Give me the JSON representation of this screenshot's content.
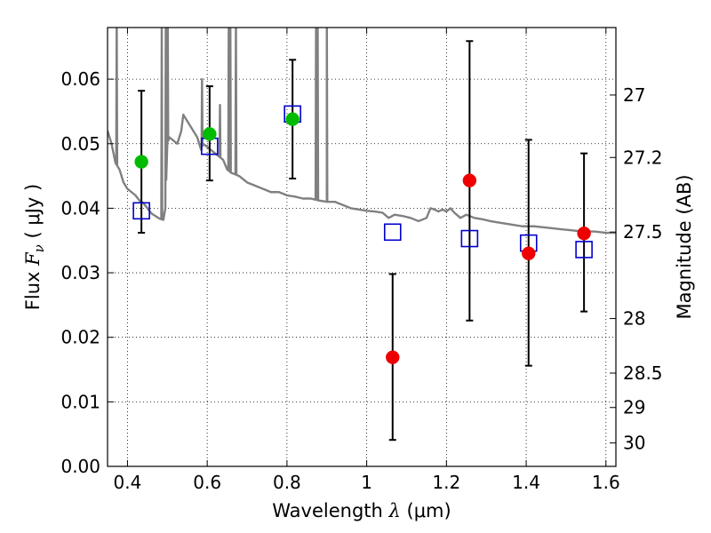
{
  "chart_data": {
    "type": "scatter",
    "xlabel": {
      "pre": "Wavelength  ",
      "sym": "λ",
      "post": " (μm)"
    },
    "ylabel": {
      "pre": "Flux  ",
      "sym": "F",
      "sub": "ν",
      "post": "  ( μJy )"
    },
    "y2label": "Magnitude (AB)",
    "xlim": [
      0.35,
      1.625
    ],
    "ylim": [
      0.0,
      0.068
    ],
    "grid": true,
    "x_ticks": [
      {
        "v": 0.4,
        "label": "0.4"
      },
      {
        "v": 0.6,
        "label": "0.6"
      },
      {
        "v": 0.8,
        "label": "0.8"
      },
      {
        "v": 1.0,
        "label": "1"
      },
      {
        "v": 1.2,
        "label": "1.2"
      },
      {
        "v": 1.4,
        "label": "1.4"
      },
      {
        "v": 1.6,
        "label": "1.6"
      }
    ],
    "y_ticks": [
      {
        "v": 0.0,
        "label": "0.00"
      },
      {
        "v": 0.01,
        "label": "0.01"
      },
      {
        "v": 0.02,
        "label": "0.02"
      },
      {
        "v": 0.03,
        "label": "0.03"
      },
      {
        "v": 0.04,
        "label": "0.04"
      },
      {
        "v": 0.05,
        "label": "0.05"
      },
      {
        "v": 0.06,
        "label": "0.06"
      }
    ],
    "y2_ticks": [
      {
        "mag": 27,
        "label": "27"
      },
      {
        "mag": 27.2,
        "label": "27.2"
      },
      {
        "mag": 27.5,
        "label": "27.5"
      },
      {
        "mag": 28,
        "label": "28"
      },
      {
        "mag": 28.5,
        "label": "28.5"
      },
      {
        "mag": 29,
        "label": "29"
      },
      {
        "mag": 30,
        "label": "30"
      }
    ],
    "colors": {
      "template": "#808080",
      "model": "#0000cc",
      "detection": "#00bb00",
      "upper": "#ee0000",
      "errorbar": "#000000",
      "grid": "#000000"
    },
    "observed": [
      {
        "x": 0.435,
        "y": 0.0472,
        "yerr": [
          0.0362,
          0.0582
        ],
        "group": "detection"
      },
      {
        "x": 0.606,
        "y": 0.0515,
        "yerr": [
          0.0443,
          0.0589
        ],
        "group": "detection"
      },
      {
        "x": 0.814,
        "y": 0.0538,
        "yerr": [
          0.0446,
          0.063
        ],
        "group": "detection"
      },
      {
        "x": 1.065,
        "y": 0.0169,
        "yerr": [
          0.0041,
          0.0298
        ],
        "group": "upper"
      },
      {
        "x": 1.258,
        "y": 0.0443,
        "yerr": [
          0.0226,
          0.0659
        ],
        "group": "upper"
      },
      {
        "x": 1.406,
        "y": 0.033,
        "yerr": [
          0.0156,
          0.0506
        ],
        "group": "upper"
      },
      {
        "x": 1.545,
        "y": 0.0361,
        "yerr": [
          0.024,
          0.0485
        ],
        "group": "upper"
      }
    ],
    "model_flux": [
      {
        "x": 0.435,
        "y": 0.0396
      },
      {
        "x": 0.606,
        "y": 0.0496
      },
      {
        "x": 0.814,
        "y": 0.0546
      },
      {
        "x": 1.065,
        "y": 0.0363
      },
      {
        "x": 1.258,
        "y": 0.0353
      },
      {
        "x": 1.406,
        "y": 0.0346
      },
      {
        "x": 1.545,
        "y": 0.0336
      }
    ],
    "template_spectrum": [
      [
        0.35,
        0.052
      ],
      [
        0.36,
        0.05
      ],
      [
        0.37,
        0.047
      ],
      [
        0.38,
        0.046
      ],
      [
        0.39,
        0.044
      ],
      [
        0.4,
        0.043
      ],
      [
        0.41,
        0.0425
      ],
      [
        0.42,
        0.042
      ],
      [
        0.43,
        0.0412
      ],
      [
        0.44,
        0.0408
      ],
      [
        0.45,
        0.04
      ],
      [
        0.46,
        0.0392
      ],
      [
        0.47,
        0.0388
      ],
      [
        0.48,
        0.0384
      ],
      [
        0.49,
        0.0382
      ],
      [
        0.495,
        0.04
      ],
      [
        0.5,
        0.05
      ],
      [
        0.505,
        0.051
      ],
      [
        0.515,
        0.0505
      ],
      [
        0.525,
        0.05
      ],
      [
        0.535,
        0.052
      ],
      [
        0.54,
        0.0545
      ],
      [
        0.545,
        0.054
      ],
      [
        0.555,
        0.053
      ],
      [
        0.565,
        0.052
      ],
      [
        0.575,
        0.051
      ],
      [
        0.585,
        0.049
      ],
      [
        0.59,
        0.05
      ],
      [
        0.6,
        0.0495
      ],
      [
        0.61,
        0.049
      ],
      [
        0.62,
        0.0485
      ],
      [
        0.63,
        0.048
      ],
      [
        0.64,
        0.0475
      ],
      [
        0.65,
        0.046
      ],
      [
        0.66,
        0.0455
      ],
      [
        0.68,
        0.045
      ],
      [
        0.7,
        0.044
      ],
      [
        0.72,
        0.0435
      ],
      [
        0.74,
        0.043
      ],
      [
        0.76,
        0.0425
      ],
      [
        0.78,
        0.0425
      ],
      [
        0.8,
        0.042
      ],
      [
        0.82,
        0.0418
      ],
      [
        0.84,
        0.0415
      ],
      [
        0.86,
        0.0415
      ],
      [
        0.88,
        0.0412
      ],
      [
        0.9,
        0.041
      ],
      [
        0.92,
        0.041
      ],
      [
        0.94,
        0.0405
      ],
      [
        0.96,
        0.04
      ],
      [
        0.98,
        0.0398
      ],
      [
        1.0,
        0.0396
      ],
      [
        1.02,
        0.0395
      ],
      [
        1.04,
        0.0393
      ],
      [
        1.055,
        0.0385
      ],
      [
        1.07,
        0.039
      ],
      [
        1.09,
        0.0388
      ],
      [
        1.11,
        0.0385
      ],
      [
        1.13,
        0.038
      ],
      [
        1.15,
        0.0385
      ],
      [
        1.16,
        0.04
      ],
      [
        1.17,
        0.0398
      ],
      [
        1.18,
        0.0395
      ],
      [
        1.19,
        0.0398
      ],
      [
        1.2,
        0.0395
      ],
      [
        1.21,
        0.04
      ],
      [
        1.22,
        0.0393
      ],
      [
        1.235,
        0.0385
      ],
      [
        1.25,
        0.039
      ],
      [
        1.27,
        0.0385
      ],
      [
        1.29,
        0.0383
      ],
      [
        1.31,
        0.038
      ],
      [
        1.33,
        0.0378
      ],
      [
        1.36,
        0.0375
      ],
      [
        1.39,
        0.0372
      ],
      [
        1.42,
        0.0372
      ],
      [
        1.45,
        0.037
      ],
      [
        1.48,
        0.0368
      ],
      [
        1.51,
        0.0366
      ],
      [
        1.54,
        0.0364
      ],
      [
        1.57,
        0.0364
      ],
      [
        1.6,
        0.0362
      ],
      [
        1.625,
        0.0362
      ]
    ],
    "template_emission_lines": [
      {
        "x": 0.373,
        "peak": 0.07
      },
      {
        "x": 0.486,
        "peak": 0.07
      },
      {
        "x": 0.496,
        "peak": 0.07
      },
      {
        "x": 0.501,
        "peak": 0.07
      },
      {
        "x": 0.587,
        "peak": 0.06
      },
      {
        "x": 0.632,
        "peak": 0.056
      },
      {
        "x": 0.654,
        "peak": 0.07
      },
      {
        "x": 0.656,
        "peak": 0.07
      },
      {
        "x": 0.658,
        "peak": 0.07
      },
      {
        "x": 0.672,
        "peak": 0.07
      },
      {
        "x": 0.873,
        "peak": 0.07
      },
      {
        "x": 0.877,
        "peak": 0.07
      },
      {
        "x": 0.9,
        "peak": 0.07
      }
    ]
  }
}
